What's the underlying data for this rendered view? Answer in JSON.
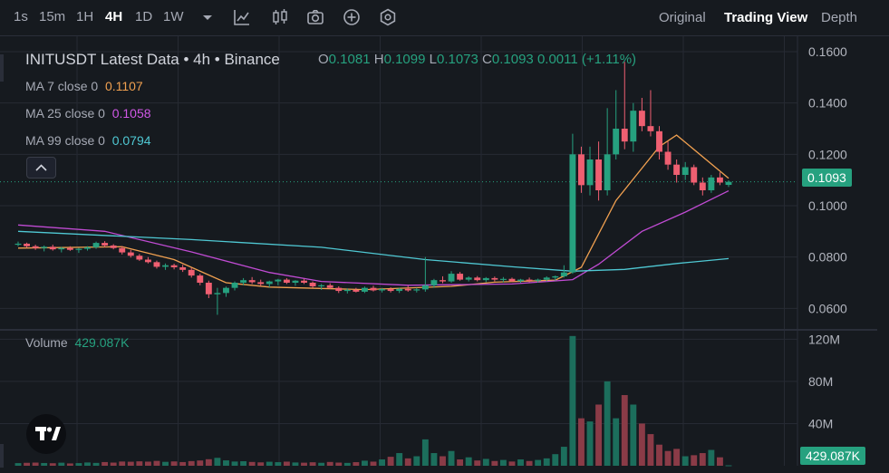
{
  "toolbar": {
    "timeframes": [
      "1s",
      "15m",
      "1H",
      "4H",
      "1D",
      "1W"
    ],
    "active_timeframe": "4H",
    "views": [
      "Original",
      "Trading View",
      "Depth"
    ],
    "active_view": "Trading View",
    "icons": [
      "chevron-down-icon",
      "line-tool-icon",
      "candle-type-icon",
      "camera-icon",
      "add-indicator-icon",
      "settings-icon"
    ]
  },
  "legend": {
    "title": "INITUSDT Latest Data • 4h • Binance",
    "ohlc": [
      {
        "k": "O",
        "v": "0.1081"
      },
      {
        "k": "H",
        "v": "0.1099"
      },
      {
        "k": "L",
        "v": "0.1073"
      },
      {
        "k": "C",
        "v": "0.1093"
      }
    ],
    "change": "0.0011 (+1.11%)",
    "ma7_label": "MA 7 close 0",
    "ma7_value": "0.1107",
    "ma25_label": "MA 25 close 0",
    "ma25_value": "0.1058",
    "ma99_label": "MA 99 close 0",
    "ma99_value": "0.0794",
    "volume_label": "Volume",
    "volume_value": "429.087K"
  },
  "price_badge": "0.1093",
  "volume_badge": "429.087K",
  "colors": {
    "up": "#26a17f",
    "down": "#ef5f71",
    "ma7": "#f0a050",
    "ma25": "#c04bd3",
    "ma99": "#4fc8d3",
    "grid": "#262a33",
    "axis_text": "#b2b5be"
  },
  "chart_data": {
    "type": "candlestick",
    "title": "INITUSDT Latest Data • 4h • Binance",
    "price_ylim": [
      0.052,
      0.166
    ],
    "price_ticks": [
      "0.1600",
      "0.1400",
      "0.1200",
      "0.1000",
      "0.0800",
      "0.0600"
    ],
    "volume_ylim": [
      0,
      128
    ],
    "volume_ticks": [
      "120M",
      "80M",
      "40M"
    ],
    "grid": true,
    "series": [
      {
        "name": "INITUSDT",
        "kind": "candles",
        "ohlc": [
          [
            0.085,
            0.086,
            0.0842,
            0.0852
          ],
          [
            0.0852,
            0.0856,
            0.0836,
            0.0842
          ],
          [
            0.0842,
            0.0848,
            0.0828,
            0.0835
          ],
          [
            0.0835,
            0.0845,
            0.0822,
            0.084
          ],
          [
            0.084,
            0.0848,
            0.0825,
            0.083
          ],
          [
            0.083,
            0.084,
            0.0818,
            0.0835
          ],
          [
            0.0835,
            0.0842,
            0.0824,
            0.0828
          ],
          [
            0.0828,
            0.0836,
            0.0816,
            0.0832
          ],
          [
            0.0832,
            0.0842,
            0.0825,
            0.0838
          ],
          [
            0.0838,
            0.086,
            0.0832,
            0.0855
          ],
          [
            0.0855,
            0.0862,
            0.0838,
            0.0845
          ],
          [
            0.0845,
            0.085,
            0.083,
            0.0835
          ],
          [
            0.0835,
            0.0842,
            0.081,
            0.0818
          ],
          [
            0.0818,
            0.0828,
            0.0798,
            0.0805
          ],
          [
            0.0805,
            0.0812,
            0.0785,
            0.079
          ],
          [
            0.079,
            0.08,
            0.0775,
            0.078
          ],
          [
            0.078,
            0.0786,
            0.0755,
            0.0762
          ],
          [
            0.0762,
            0.0775,
            0.075,
            0.0768
          ],
          [
            0.0768,
            0.0774,
            0.0752,
            0.076
          ],
          [
            0.076,
            0.077,
            0.0742,
            0.075
          ],
          [
            0.075,
            0.0758,
            0.072,
            0.0728
          ],
          [
            0.0728,
            0.0735,
            0.069,
            0.07
          ],
          [
            0.07,
            0.0708,
            0.064,
            0.0655
          ],
          [
            0.0655,
            0.068,
            0.0575,
            0.066
          ],
          [
            0.066,
            0.0685,
            0.0645,
            0.068
          ],
          [
            0.068,
            0.0705,
            0.067,
            0.07
          ],
          [
            0.07,
            0.0718,
            0.069,
            0.071
          ],
          [
            0.071,
            0.0722,
            0.0695,
            0.0702
          ],
          [
            0.0702,
            0.0712,
            0.0688,
            0.0695
          ],
          [
            0.0695,
            0.0708,
            0.0682,
            0.0705
          ],
          [
            0.0705,
            0.0715,
            0.069,
            0.0712
          ],
          [
            0.0712,
            0.0718,
            0.0695,
            0.07
          ],
          [
            0.07,
            0.071,
            0.0688,
            0.0708
          ],
          [
            0.0708,
            0.0715,
            0.0695,
            0.07
          ],
          [
            0.07,
            0.0705,
            0.068,
            0.0686
          ],
          [
            0.0686,
            0.0695,
            0.0672,
            0.069
          ],
          [
            0.069,
            0.0698,
            0.0675,
            0.068
          ],
          [
            0.068,
            0.0686,
            0.066,
            0.0668
          ],
          [
            0.0668,
            0.0678,
            0.0658,
            0.0672
          ],
          [
            0.0672,
            0.068,
            0.0662,
            0.0665
          ],
          [
            0.0665,
            0.0685,
            0.066,
            0.068
          ],
          [
            0.068,
            0.0688,
            0.0666,
            0.067
          ],
          [
            0.067,
            0.068,
            0.0662,
            0.0675
          ],
          [
            0.0675,
            0.0682,
            0.0662,
            0.0668
          ],
          [
            0.0668,
            0.068,
            0.066,
            0.0676
          ],
          [
            0.0676,
            0.0688,
            0.0665,
            0.067
          ],
          [
            0.067,
            0.068,
            0.0662,
            0.0674
          ],
          [
            0.0674,
            0.08,
            0.0665,
            0.069
          ],
          [
            0.069,
            0.0715,
            0.068,
            0.071
          ],
          [
            0.071,
            0.0725,
            0.0698,
            0.0705
          ],
          [
            0.0705,
            0.0745,
            0.07,
            0.0735
          ],
          [
            0.0735,
            0.0742,
            0.0708,
            0.0712
          ],
          [
            0.0712,
            0.0725,
            0.0705,
            0.072
          ],
          [
            0.072,
            0.0726,
            0.0705,
            0.071
          ],
          [
            0.071,
            0.0722,
            0.0702,
            0.0718
          ],
          [
            0.0718,
            0.0724,
            0.0705,
            0.0712
          ],
          [
            0.0712,
            0.0722,
            0.0702,
            0.0715
          ],
          [
            0.0715,
            0.072,
            0.0702,
            0.0706
          ],
          [
            0.0706,
            0.0715,
            0.07,
            0.0712
          ],
          [
            0.0712,
            0.072,
            0.0702,
            0.0708
          ],
          [
            0.0708,
            0.0716,
            0.07,
            0.0712
          ],
          [
            0.0712,
            0.0725,
            0.0705,
            0.072
          ],
          [
            0.072,
            0.0728,
            0.0708,
            0.0725
          ],
          [
            0.0725,
            0.0768,
            0.072,
            0.074
          ],
          [
            0.074,
            0.128,
            0.0735,
            0.12
          ],
          [
            0.12,
            0.123,
            0.105,
            0.108
          ],
          [
            0.108,
            0.123,
            0.104,
            0.118
          ],
          [
            0.118,
            0.125,
            0.102,
            0.106
          ],
          [
            0.106,
            0.138,
            0.104,
            0.12
          ],
          [
            0.12,
            0.145,
            0.118,
            0.13
          ],
          [
            0.13,
            0.156,
            0.122,
            0.125
          ],
          [
            0.125,
            0.14,
            0.121,
            0.137
          ],
          [
            0.137,
            0.142,
            0.129,
            0.131
          ],
          [
            0.131,
            0.145,
            0.127,
            0.129
          ],
          [
            0.129,
            0.131,
            0.118,
            0.121
          ],
          [
            0.121,
            0.125,
            0.114,
            0.116
          ],
          [
            0.116,
            0.118,
            0.109,
            0.112
          ],
          [
            0.112,
            0.117,
            0.11,
            0.115
          ],
          [
            0.115,
            0.116,
            0.108,
            0.109
          ],
          [
            0.109,
            0.111,
            0.104,
            0.106
          ],
          [
            0.106,
            0.112,
            0.105,
            0.111
          ],
          [
            0.111,
            0.113,
            0.108,
            0.109
          ],
          [
            0.1081,
            0.1099,
            0.1073,
            0.1093
          ]
        ]
      },
      {
        "name": "MA 7 close 0",
        "kind": "line",
        "color": "#f0a050",
        "values": [
          [
            0,
            0.0835
          ],
          [
            12,
            0.084
          ],
          [
            18,
            0.079
          ],
          [
            24,
            0.07
          ],
          [
            29,
            0.0683
          ],
          [
            40,
            0.0673
          ],
          [
            50,
            0.0686
          ],
          [
            55,
            0.0702
          ],
          [
            62,
            0.071
          ],
          [
            65,
            0.076
          ],
          [
            69,
            0.102
          ],
          [
            74,
            0.123
          ],
          [
            76,
            0.1275
          ],
          [
            82,
            0.1107
          ]
        ]
      },
      {
        "name": "MA 25 close 0",
        "kind": "line",
        "color": "#c04bd3",
        "values": [
          [
            0,
            0.0925
          ],
          [
            10,
            0.09
          ],
          [
            20,
            0.082
          ],
          [
            29,
            0.074
          ],
          [
            35,
            0.0705
          ],
          [
            45,
            0.069
          ],
          [
            57,
            0.0695
          ],
          [
            64,
            0.0712
          ],
          [
            67,
            0.0772
          ],
          [
            72,
            0.09
          ],
          [
            77,
            0.0975
          ],
          [
            82,
            0.1058
          ]
        ]
      },
      {
        "name": "MA 99 close 0",
        "kind": "line",
        "color": "#4fc8d3",
        "values": [
          [
            0,
            0.09
          ],
          [
            20,
            0.0868
          ],
          [
            35,
            0.0838
          ],
          [
            47,
            0.079
          ],
          [
            57,
            0.0762
          ],
          [
            64,
            0.0745
          ],
          [
            70,
            0.0752
          ],
          [
            76,
            0.0775
          ],
          [
            82,
            0.0794
          ]
        ]
      },
      {
        "name": "Volume",
        "kind": "volume",
        "values": [
          2.5,
          2.8,
          3.0,
          2.6,
          2.4,
          2.9,
          2.2,
          2.5,
          3.1,
          2.7,
          3.5,
          3.0,
          4.0,
          3.8,
          4.2,
          3.9,
          4.6,
          3.7,
          4.1,
          3.5,
          4.4,
          5.0,
          6.2,
          7.5,
          5.1,
          4.0,
          4.3,
          3.6,
          3.2,
          3.8,
          3.4,
          3.9,
          3.1,
          2.9,
          3.3,
          2.8,
          3.6,
          3.0,
          2.7,
          3.4,
          4.8,
          3.9,
          6.0,
          8.5,
          12.0,
          7.0,
          9.0,
          25.0,
          12.0,
          9.0,
          14.0,
          6.0,
          8.0,
          5.0,
          6.5,
          4.5,
          5.5,
          4.0,
          6.0,
          4.5,
          5.5,
          7.0,
          11.0,
          18.0,
          123.0,
          45.0,
          42.0,
          58.0,
          80.0,
          45.0,
          67.0,
          58.0,
          40.0,
          30.0,
          20.0,
          14.0,
          16.0,
          9.0,
          10.0,
          12.0,
          15.0,
          8.0,
          0.43
        ]
      }
    ]
  }
}
